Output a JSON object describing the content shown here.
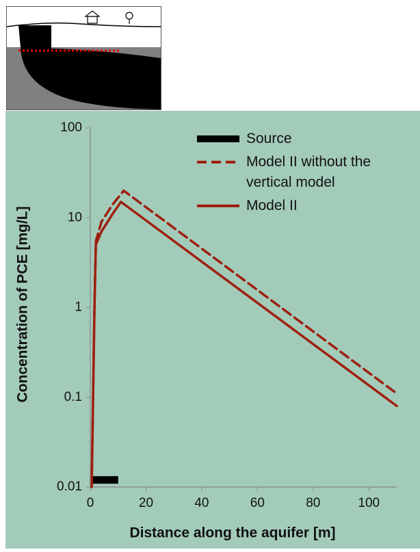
{
  "chart_data": {
    "type": "line",
    "xlabel": "Distance along the aquifer [m]",
    "ylabel": "Concentration of PCE [mg/L]",
    "xlim": [
      0,
      110
    ],
    "xticks": [
      0,
      20,
      40,
      60,
      80,
      100
    ],
    "ylim": [
      0.01,
      100
    ],
    "yticks": [
      100,
      10,
      1,
      0.1,
      0.01
    ],
    "ylog": true,
    "series": [
      {
        "name": "Source",
        "color": "#000000",
        "style": "bar",
        "x": [
          0.5,
          10
        ],
        "values": [
          0.012,
          0.012
        ]
      },
      {
        "name": "Model II without the vertical model",
        "color": "#9e1f0f",
        "style": "dashed",
        "x": [
          0.5,
          1.5,
          2,
          4,
          8,
          12,
          110
        ],
        "values": [
          0.01,
          1,
          5.5,
          9,
          14,
          20,
          0.11
        ]
      },
      {
        "name": "Model II",
        "color": "#9e1f0f",
        "style": "solid",
        "x": [
          0.5,
          1.5,
          2,
          4,
          8,
          11,
          110
        ],
        "values": [
          0.01,
          1,
          5,
          7,
          11,
          15,
          0.08
        ]
      }
    ]
  }
}
